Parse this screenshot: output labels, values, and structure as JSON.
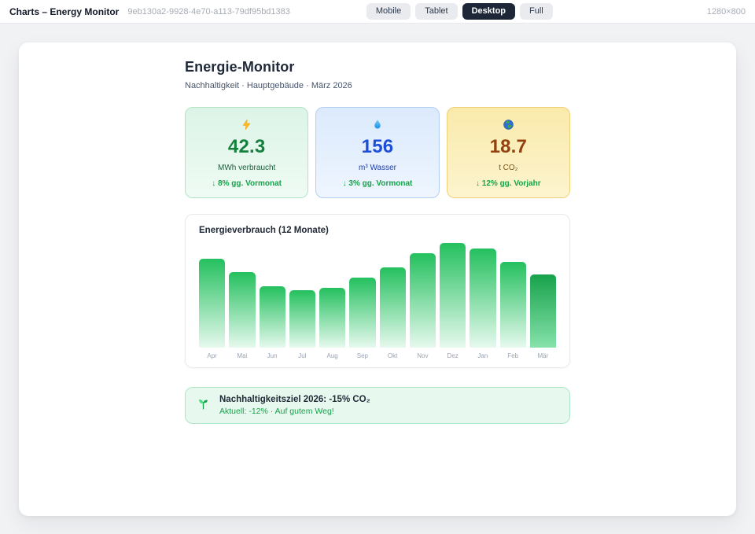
{
  "header": {
    "title": "Charts – Energy Monitor",
    "uuid": "9eb130a2-9928-4e70-a113-79df95bd1383",
    "devices": [
      {
        "label": "Mobile",
        "active": false
      },
      {
        "label": "Tablet",
        "active": false
      },
      {
        "label": "Desktop",
        "active": true
      },
      {
        "label": "Full",
        "active": false
      }
    ],
    "viewport": "1280×800"
  },
  "page": {
    "title": "Energie-Monitor",
    "subtitle": "Nachhaltigkeit · Hauptgebäude · März 2026"
  },
  "kpis": [
    {
      "icon": "lightning-bolt",
      "value": "42.3",
      "label": "MWh verbraucht",
      "trend": "↓ 8% gg. Vormonat",
      "theme": "green"
    },
    {
      "icon": "water-droplet",
      "value": "156",
      "label": "m³ Wasser",
      "trend": "↓ 3% gg. Vormonat",
      "theme": "blue"
    },
    {
      "icon": "globe",
      "value": "18.7",
      "label": "t CO₂",
      "trend": "↓ 12% gg. Vorjahr",
      "theme": "yellow"
    }
  ],
  "chart_data": {
    "type": "bar",
    "title": "Energieverbrauch (12 Monate)",
    "categories": [
      "Apr",
      "Mai",
      "Jun",
      "Jul",
      "Aug",
      "Sep",
      "Okt",
      "Nov",
      "Dez",
      "Jan",
      "Feb",
      "Mär"
    ],
    "values": [
      85,
      72,
      59,
      55,
      57,
      67,
      77,
      90,
      100,
      95,
      82,
      70
    ],
    "value_unit": "percent of tallest bar (no y-axis labels shown in chart)",
    "xlabel": "",
    "ylabel": "",
    "ylim": [
      0,
      100
    ],
    "grid": false,
    "legend": "none",
    "highlight_index": 11,
    "bar_gradient_top": "#24c05e",
    "bar_gradient_bottom": "#e6f9ee",
    "highlight_gradient_top": "#17a24b",
    "highlight_gradient_bottom": "#86e2ab"
  },
  "banner": {
    "icon": "seedling",
    "title": "Nachhaltigkeitsziel 2026: -15% CO₂",
    "subtitle": "Aktuell: -12% · Auf gutem Weg!"
  },
  "colors": {
    "accent_green": "#16a34a",
    "kpi_value_green": "#15803d",
    "kpi_value_blue": "#1d4ed8",
    "kpi_value_amber": "#92400e",
    "device_active_bg": "#1e2738"
  }
}
